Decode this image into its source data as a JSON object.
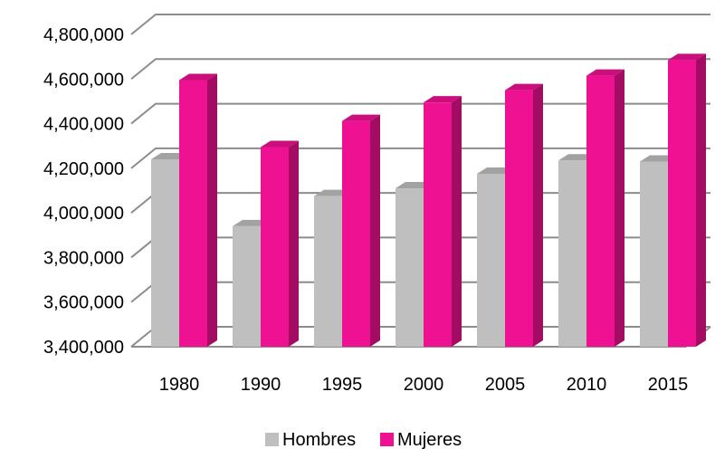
{
  "chart_data": {
    "type": "bar",
    "title": "",
    "xlabel": "",
    "ylabel": "",
    "categories": [
      "1980",
      "1990",
      "1995",
      "2000",
      "2005",
      "2010",
      "2015"
    ],
    "series": [
      {
        "name": "Hombres",
        "color": "#BFBFBF",
        "values": [
          4240000,
          3940000,
          4075000,
          4110000,
          4175000,
          4235000,
          4230000
        ]
      },
      {
        "name": "Mujeres",
        "color": "#EE1192",
        "values": [
          4595000,
          4295000,
          4412000,
          4495000,
          4550000,
          4615000,
          4685000
        ]
      }
    ],
    "ylim": [
      3400000,
      4800000
    ],
    "yticks": [
      "3,400,000",
      "3,600,000",
      "3,800,000",
      "4,000,000",
      "4,200,000",
      "4,400,000",
      "4,600,000",
      "4,800,000"
    ],
    "grid": true,
    "legend_position": "bottom",
    "three_d": true
  }
}
